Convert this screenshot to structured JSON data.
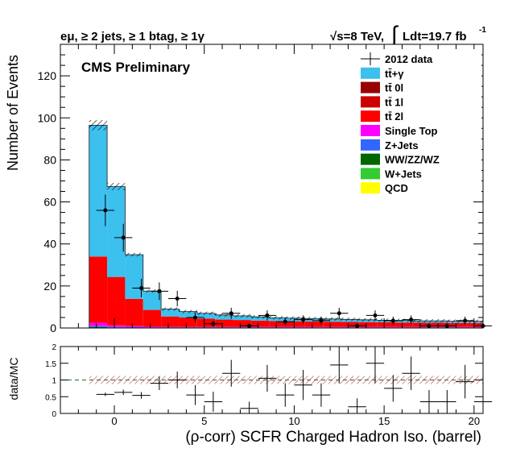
{
  "header": {
    "selection": "eμ, ≥ 2 jets, ≥ 1 btag, ≥ 1γ",
    "energy": "√s=8 TeV,",
    "lumi_integral": "∫",
    "lumi": "Ldt=19.7 fb",
    "lumi_exp": "-1"
  },
  "label": "CMS Preliminary",
  "chart_data": [
    {
      "type": "bar",
      "stacked": true,
      "title": "",
      "xlabel": "(ρ-corr) SCFR Charged Hadron Iso. (barrel)",
      "ylabel": "Number of Events",
      "xlim": [
        -3,
        20.5
      ],
      "ylim": [
        0,
        135
      ],
      "xticks": [
        0,
        5,
        10,
        15,
        20
      ],
      "xtick_labels": [
        "0",
        "5",
        "10",
        "15",
        "20"
      ],
      "yticks": [
        0,
        20,
        40,
        60,
        80,
        100,
        120
      ],
      "ytick_labels": [
        "0",
        "20",
        "40",
        "60",
        "80",
        "100",
        "120"
      ],
      "grid": false,
      "legend_position": "top-right",
      "bin_edges": [
        -1.4,
        -0.4,
        0.6,
        1.6,
        2.6,
        3.6,
        4.6,
        5.6,
        6.6,
        7.6,
        8.6,
        9.6,
        10.6,
        11.6,
        12.6,
        13.6,
        14.6,
        15.6,
        16.6,
        17.6,
        18.6,
        19.6,
        20.5
      ],
      "series": [
        {
          "name": "tt̄+γ",
          "color": "#3cc0ee",
          "values": [
            62.5,
            43,
            21,
            9,
            3.5,
            2.8,
            2.5,
            2.2,
            2.0,
            1.8,
            1.6,
            1.5,
            1.4,
            1.3,
            1.2,
            1.1,
            1.0,
            1.0,
            0.9,
            0.9,
            0.8,
            0.8
          ]
        },
        {
          "name": "tt̄ 0l",
          "color": "#990000",
          "values": [
            0,
            0,
            0,
            0,
            0,
            0,
            0,
            0,
            0,
            0,
            0,
            0,
            0,
            0,
            0,
            0,
            0,
            0,
            0,
            0,
            0,
            0
          ]
        },
        {
          "name": "tt̄ 1l",
          "color": "#cc0000",
          "values": [
            0,
            0,
            0,
            0,
            0,
            0,
            0,
            0,
            0,
            0,
            0,
            0,
            0,
            0,
            0,
            0,
            0,
            0,
            0,
            0,
            0,
            0
          ]
        },
        {
          "name": "tt̄ 2l",
          "color": "#ff0000",
          "values": [
            31.5,
            23,
            13,
            8,
            5,
            4.5,
            4,
            3.5,
            3.3,
            3,
            2.8,
            2.7,
            2.6,
            2.5,
            2.4,
            2.3,
            2.2,
            2.1,
            2.0,
            2.0,
            1.9,
            1.9
          ]
        },
        {
          "name": "Single Top",
          "color": "#ff00ff",
          "values": [
            1.5,
            0.8,
            0.5,
            0.3,
            0.2,
            0.2,
            0.2,
            0.2,
            0.2,
            0.2,
            0.2,
            0.2,
            0.2,
            0.2,
            0.2,
            0.2,
            0.2,
            0.2,
            0.2,
            0.2,
            0.2,
            0.2
          ]
        },
        {
          "name": "Z+Jets",
          "color": "#3366ff",
          "values": [
            0.5,
            0.2,
            0.2,
            0.1,
            0.1,
            0.1,
            0.1,
            0.1,
            0.1,
            0.1,
            0.1,
            0.1,
            0.1,
            0.1,
            0.1,
            0.1,
            0.1,
            0.1,
            0.1,
            0.1,
            0.1,
            0.1
          ]
        },
        {
          "name": "WW/ZZ/WZ",
          "color": "#006600",
          "values": [
            0.3,
            0.2,
            0.1,
            0.1,
            0.1,
            0.1,
            0.1,
            0.1,
            0.1,
            0.1,
            0.1,
            0.1,
            0.1,
            0.1,
            0.1,
            0.1,
            0.1,
            0.1,
            0.1,
            0.1,
            0.1,
            0.1
          ]
        },
        {
          "name": "W+Jets",
          "color": "#33cc33",
          "values": [
            0.2,
            0.1,
            0.1,
            0.1,
            0.1,
            0.1,
            0.1,
            0.1,
            0.1,
            0.1,
            0.1,
            0.1,
            0.1,
            0.1,
            0.1,
            0.1,
            0.1,
            0.1,
            0.1,
            0.1,
            0.1,
            0.1
          ]
        },
        {
          "name": "QCD",
          "color": "#ffff00",
          "values": [
            0,
            0,
            0,
            0,
            0,
            0,
            0,
            0,
            0,
            0,
            0,
            0,
            0,
            0,
            0,
            0,
            0,
            0,
            0,
            0,
            0,
            0
          ]
        }
      ],
      "data": {
        "name": "2012 data",
        "x": [
          -0.5,
          0.5,
          1.5,
          2.5,
          3.5,
          4.5,
          5.5,
          6.5,
          7.5,
          8.5,
          9.5,
          10.5,
          11.5,
          12.5,
          13.5,
          14.5,
          15.5,
          16.5,
          17.5,
          18.5,
          19.5,
          20.5
        ],
        "y": [
          56,
          43,
          19,
          17.5,
          14,
          5,
          2,
          7,
          1,
          6,
          3,
          4,
          3.5,
          7,
          1,
          6,
          3.5,
          4,
          1,
          1,
          3.5,
          1
        ],
        "yerr": [
          7.5,
          6.6,
          4.4,
          4.2,
          3.7,
          2.2,
          1.4,
          2.6,
          1.0,
          2.4,
          1.7,
          2.0,
          1.9,
          2.6,
          1.0,
          2.4,
          1.9,
          2.0,
          1.0,
          1.0,
          1.9,
          1.0
        ]
      }
    },
    {
      "type": "scatter",
      "title": "",
      "xlabel": "(ρ-corr) SCFR Charged Hadron Iso. (barrel)",
      "ylabel": "data/MC",
      "xlim": [
        -3,
        20.5
      ],
      "ylim": [
        0,
        2
      ],
      "xticks": [
        0,
        5,
        10,
        15,
        20
      ],
      "xtick_labels": [
        "0",
        "5",
        "10",
        "15",
        "20"
      ],
      "yticks": [
        0,
        0.5,
        1,
        1.5,
        2
      ],
      "ytick_labels": [
        "0",
        "0.5",
        "1",
        "1.5",
        "2"
      ],
      "reference_line": 1,
      "x": [
        -0.5,
        0.5,
        1.5,
        2.5,
        3.5,
        4.5,
        5.5,
        6.5,
        7.5,
        8.5,
        9.5,
        10.5,
        11.5,
        12.5,
        13.5,
        14.5,
        15.5,
        16.5,
        17.5,
        18.5,
        19.5,
        20.5
      ],
      "y": [
        0.57,
        0.63,
        0.54,
        0.9,
        1.0,
        0.55,
        0.35,
        1.2,
        0.15,
        1.05,
        0.55,
        0.85,
        0.55,
        1.45,
        0.2,
        1.5,
        0.75,
        1.2,
        0.35,
        0.35,
        0.95,
        0.35
      ],
      "yerr": [
        0.05,
        0.08,
        0.1,
        0.2,
        0.25,
        0.3,
        0.3,
        0.4,
        0.2,
        0.4,
        0.35,
        0.45,
        0.35,
        0.55,
        0.25,
        0.6,
        0.4,
        0.5,
        0.35,
        0.35,
        0.5,
        0.35
      ],
      "xerr": 0.5
    }
  ]
}
